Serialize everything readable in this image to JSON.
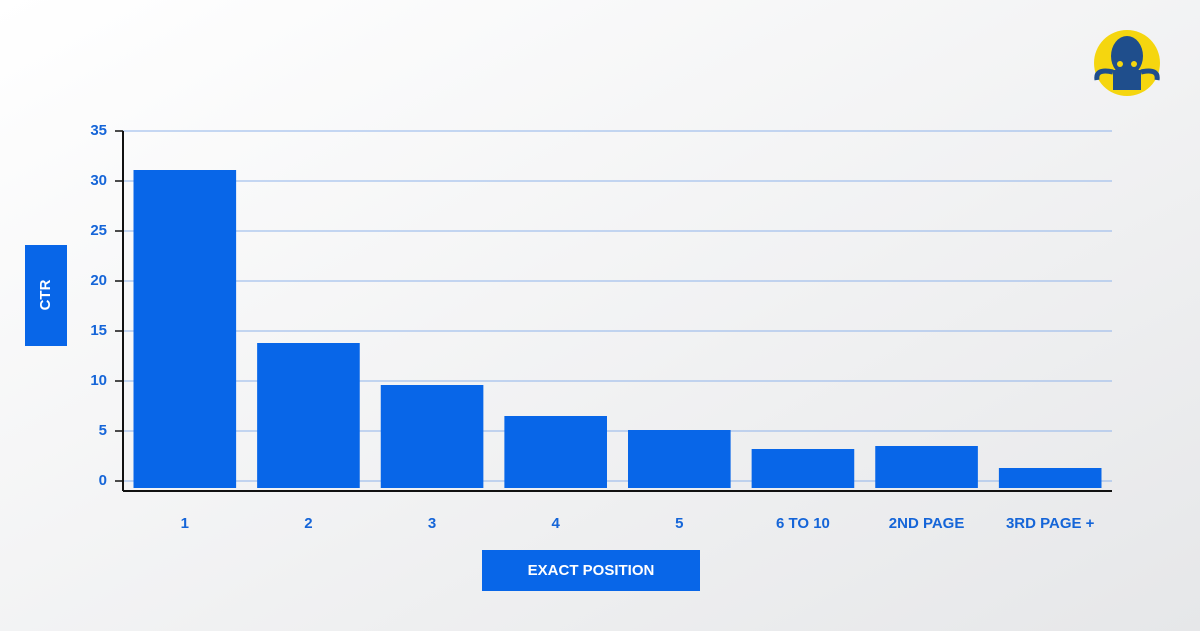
{
  "chart_data": {
    "type": "bar",
    "x_label": "EXACT POSITION",
    "y_label": "CTR",
    "categories": [
      "1",
      "2",
      "3",
      "4",
      "5",
      "6 TO 10",
      "2ND PAGE",
      "3RD PAGE +"
    ],
    "values": [
      31.1,
      13.8,
      9.6,
      6.5,
      5.1,
      3.2,
      3.5,
      1.3
    ],
    "color": "#0866e8",
    "ylim": [
      -1,
      35
    ],
    "yticks": [
      0,
      5,
      10,
      15,
      20,
      25,
      30,
      35
    ],
    "grid": true
  }
}
